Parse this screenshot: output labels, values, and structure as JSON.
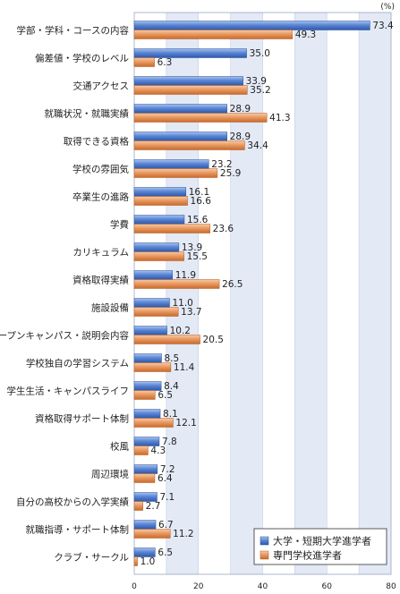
{
  "chart_data": {
    "type": "bar",
    "orientation": "horizontal",
    "unit_label": "(%)",
    "xlim": [
      0,
      80
    ],
    "ticks": [
      "0",
      "20",
      "40",
      "60",
      "80"
    ],
    "categories": [
      "学部・学科・コースの内容",
      "偏差値・学校のレベル",
      "交通アクセス",
      "就職状況・就職実績",
      "取得できる資格",
      "学校の雰囲気",
      "卒業生の進路",
      "学費",
      "カリキュラム",
      "資格取得実績",
      "施設設備",
      "オープンキャンパス・説明会内容",
      "学校独自の学習システム",
      "学生生活・キャンパスライフ",
      "資格取得サポート体制",
      "校風",
      "周辺環境",
      "自分の高校からの入学実績",
      "就職指導・サポート体制",
      "クラブ・サークル"
    ],
    "series": [
      {
        "name": "大学・短期大学進学者",
        "color": "#3f6fc6",
        "values": [
          73.4,
          35.0,
          33.9,
          28.9,
          28.9,
          23.2,
          16.1,
          15.6,
          13.9,
          11.9,
          11.0,
          10.2,
          8.5,
          8.4,
          8.1,
          7.8,
          7.2,
          7.1,
          6.7,
          6.5
        ],
        "labels": [
          "73.4",
          "35.0",
          "33.9",
          "28.9",
          "28.9",
          "23.2",
          "16.1",
          "15.6",
          "13.9",
          "11.9",
          "11.0",
          "10.2",
          "8.5",
          "8.4",
          "8.1",
          "7.8",
          "7.2",
          "7.1",
          "6.7",
          "6.5"
        ]
      },
      {
        "name": "専門学校進学者",
        "color": "#e0864a",
        "values": [
          49.3,
          6.3,
          35.2,
          41.3,
          34.4,
          25.9,
          16.6,
          23.6,
          15.5,
          26.5,
          13.7,
          20.5,
          11.4,
          6.5,
          12.1,
          4.3,
          6.4,
          2.7,
          11.2,
          1.0
        ],
        "labels": [
          "49.3",
          "6.3",
          "35.2",
          "41.3",
          "34.4",
          "25.9",
          "16.6",
          "23.6",
          "15.5",
          "26.5",
          "13.7",
          "20.5",
          "11.4",
          "6.5",
          "12.1",
          "4.3",
          "6.4",
          "2.7",
          "11.2",
          "1.0"
        ]
      }
    ],
    "grid": true,
    "legend_position": "bottom-right"
  }
}
